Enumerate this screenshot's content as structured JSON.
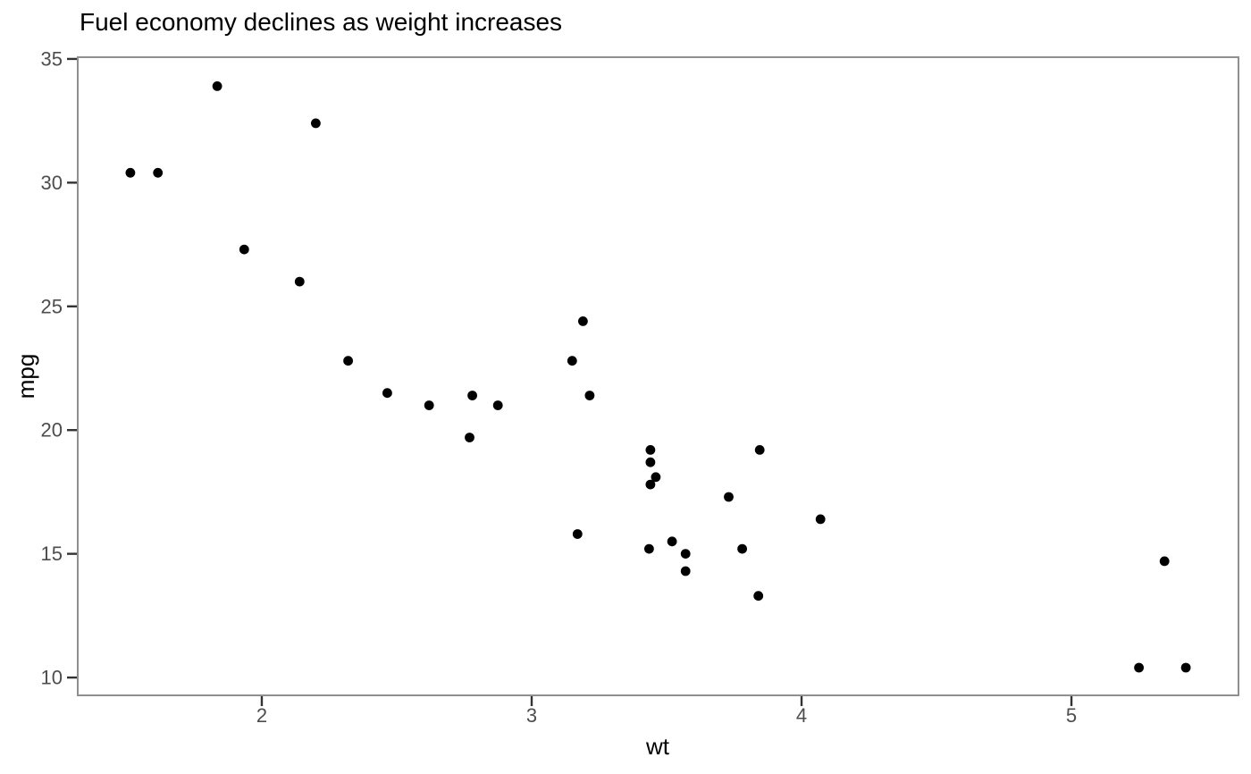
{
  "chart_data": {
    "type": "scatter",
    "title": "Fuel economy declines as weight increases",
    "xlabel": "wt",
    "ylabel": "mpg",
    "x_ticks": [
      2,
      3,
      4,
      5
    ],
    "y_ticks": [
      10,
      15,
      20,
      25,
      30,
      35
    ],
    "xlim": [
      1.318,
      5.619
    ],
    "ylim": [
      9.28,
      35.07
    ],
    "grid": "off",
    "legend": "none",
    "points": [
      {
        "wt": 2.62,
        "mpg": 21.0
      },
      {
        "wt": 2.875,
        "mpg": 21.0
      },
      {
        "wt": 2.32,
        "mpg": 22.8
      },
      {
        "wt": 3.215,
        "mpg": 21.4
      },
      {
        "wt": 3.44,
        "mpg": 18.7
      },
      {
        "wt": 3.46,
        "mpg": 18.1
      },
      {
        "wt": 3.57,
        "mpg": 14.3
      },
      {
        "wt": 3.19,
        "mpg": 24.4
      },
      {
        "wt": 3.15,
        "mpg": 22.8
      },
      {
        "wt": 3.44,
        "mpg": 19.2
      },
      {
        "wt": 3.44,
        "mpg": 17.8
      },
      {
        "wt": 4.07,
        "mpg": 16.4
      },
      {
        "wt": 3.73,
        "mpg": 17.3
      },
      {
        "wt": 3.78,
        "mpg": 15.2
      },
      {
        "wt": 5.25,
        "mpg": 10.4
      },
      {
        "wt": 5.424,
        "mpg": 10.4
      },
      {
        "wt": 5.345,
        "mpg": 14.7
      },
      {
        "wt": 2.2,
        "mpg": 32.4
      },
      {
        "wt": 1.615,
        "mpg": 30.4
      },
      {
        "wt": 1.835,
        "mpg": 33.9
      },
      {
        "wt": 2.465,
        "mpg": 21.5
      },
      {
        "wt": 3.52,
        "mpg": 15.5
      },
      {
        "wt": 3.435,
        "mpg": 15.2
      },
      {
        "wt": 3.84,
        "mpg": 13.3
      },
      {
        "wt": 3.845,
        "mpg": 19.2
      },
      {
        "wt": 1.935,
        "mpg": 27.3
      },
      {
        "wt": 2.14,
        "mpg": 26.0
      },
      {
        "wt": 1.513,
        "mpg": 30.4
      },
      {
        "wt": 3.17,
        "mpg": 15.8
      },
      {
        "wt": 2.77,
        "mpg": 19.7
      },
      {
        "wt": 3.57,
        "mpg": 15.0
      },
      {
        "wt": 2.78,
        "mpg": 21.4
      }
    ],
    "colors": {
      "point": "#000000",
      "panel_border": "#8f8f8f",
      "panel_background": "#ffffff",
      "tick_mark": "#333333",
      "tick_label": "#4d4d4d",
      "title": "#000000",
      "axis_title": "#000000"
    }
  }
}
